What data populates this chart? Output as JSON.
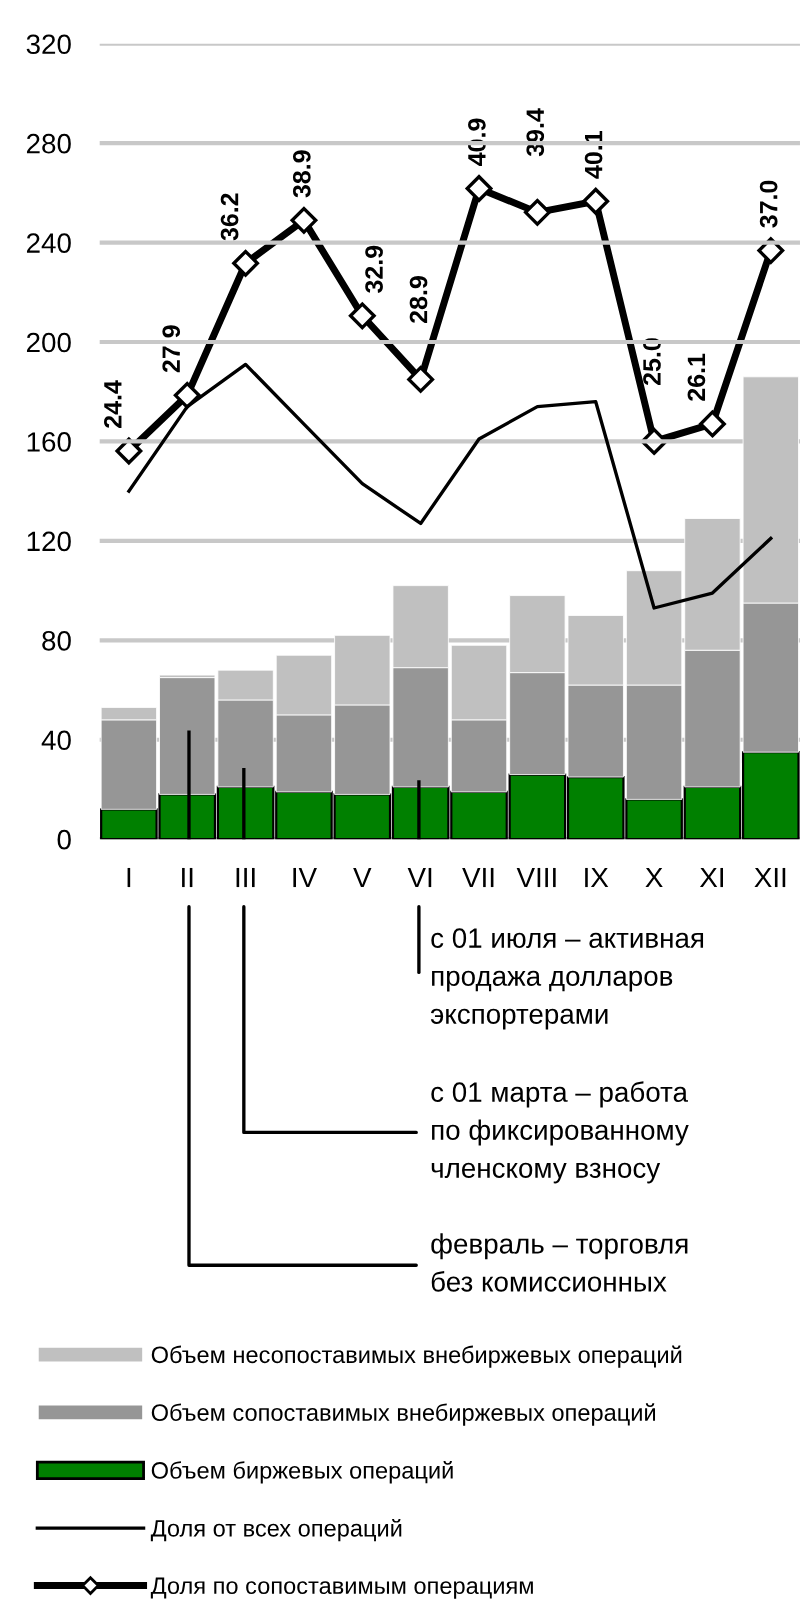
{
  "chart_data": {
    "type": "bar",
    "stacked": true,
    "categories": [
      "I",
      "II",
      "III",
      "IV",
      "V",
      "VI",
      "VII",
      "VIII",
      "IX",
      "X",
      "XI",
      "XII"
    ],
    "ylim": [
      0,
      320
    ],
    "y2lim": [
      0,
      50
    ],
    "yticks": [
      0,
      40,
      80,
      120,
      160,
      200,
      240,
      280,
      320
    ],
    "grid": "y",
    "legend": "bottom",
    "series": [
      {
        "name": "Объем биржевых операций",
        "color": "#008000",
        "values": [
          12,
          18,
          21,
          19,
          18,
          21,
          19,
          26,
          25,
          16,
          21,
          35
        ]
      },
      {
        "name": "Объем сопоставимых внебиржевых операций",
        "color": "#969696",
        "values": [
          36,
          47,
          35,
          31,
          36,
          48,
          29,
          41,
          37,
          46,
          55,
          60
        ]
      },
      {
        "name": "Объем несопоставимых внебиржевых операций",
        "color": "#c0c0c0",
        "values": [
          5,
          1,
          12,
          24,
          28,
          33,
          30,
          31,
          28,
          46,
          53,
          91
        ]
      },
      {
        "name": "Доля от всех операций",
        "type": "line",
        "color": "#000000",
        "marker": "none",
        "values": [
          140,
          174,
          191,
          167,
          143,
          127,
          161,
          174,
          176,
          93,
          99,
          121
        ]
      },
      {
        "name": "Доля по сопоставимым операциям",
        "type": "line",
        "color": "#000000",
        "marker": "diamond",
        "axis": "y2",
        "values": [
          24.4,
          27.9,
          36.2,
          38.9,
          32.9,
          28.9,
          40.9,
          39.4,
          40.1,
          25.0,
          26.1,
          37.0
        ],
        "value_labels": [
          "24.4",
          "27.9",
          "36.2",
          "38.9",
          "32.9",
          "28.9",
          "40.9",
          "39.4",
          "40.1",
          "25.0",
          "26.1",
          "37.0"
        ]
      }
    ],
    "annotations": [
      "с 01 июля – активная\nпродажа долларов\nэкспортерами",
      "с 01 марта – работа\nпо фиксированному\nчленскому взносу",
      "февраль – торговля\nбез комиссионных"
    ]
  }
}
